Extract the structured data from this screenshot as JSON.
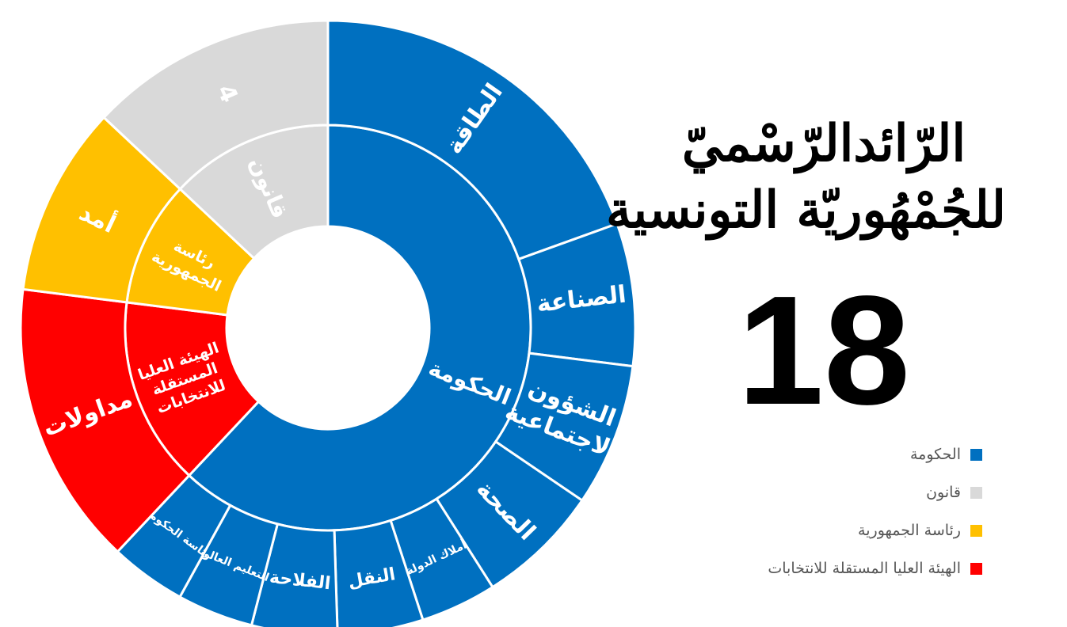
{
  "header": {
    "title_line1": "الرّائدالرّسْميّ",
    "title_line2": "للجُمْهُوريّة التونسية",
    "issue_number": "18"
  },
  "colors": {
    "government": "#0070c0",
    "law": "#d9d9d9",
    "presidency": "#ffc000",
    "election_authority": "#ff0000",
    "separator": "#ffffff"
  },
  "legend": [
    {
      "label": "الحكومة",
      "color": "#0070c0"
    },
    {
      "label": "قانون",
      "color": "#d9d9d9"
    },
    {
      "label": "رئاسة الجمهورية",
      "color": "#ffc000"
    },
    {
      "label": "الهيئة العليا المستقلة للانتخابات",
      "color": "#ff0000"
    }
  ],
  "chart_data": {
    "type": "sunburst",
    "inner_ring": [
      {
        "label": "الحكومة",
        "value": 62,
        "color": "#0070c0"
      },
      {
        "label": "الهيئة العليا المستقلة للانتخابات",
        "value": 15,
        "color": "#ff0000"
      },
      {
        "label": "رئاسة الجمهورية",
        "value": 10,
        "color": "#ffc000"
      },
      {
        "label": "قانون",
        "value": 13,
        "color": "#d9d9d9"
      }
    ],
    "outer_ring": [
      {
        "label": "الطاقة",
        "value": 19.5,
        "color": "#0070c0"
      },
      {
        "label": "الصناعة",
        "value": 7.5,
        "color": "#0070c0"
      },
      {
        "label": "الشؤون الاجتماعية",
        "value": 7.5,
        "color": "#0070c0"
      },
      {
        "label": "الصحة",
        "value": 6.5,
        "color": "#0070c0"
      },
      {
        "label": "أملاك الدولة",
        "value": 4,
        "color": "#0070c0"
      },
      {
        "label": "النقل",
        "value": 4.5,
        "color": "#0070c0"
      },
      {
        "label": "الفلاحة",
        "value": 4.5,
        "color": "#0070c0"
      },
      {
        "label": "التعليم العالي",
        "value": 4,
        "color": "#0070c0"
      },
      {
        "label": "رئاسة الحكومة",
        "value": 4,
        "color": "#0070c0"
      },
      {
        "label": "مداولات",
        "value": 15,
        "color": "#ff0000"
      },
      {
        "label": "أمد",
        "value": 10,
        "color": "#ffc000"
      },
      {
        "label": "4",
        "value": 13,
        "color": "#d9d9d9"
      }
    ],
    "inner_labels": [
      {
        "lines": [
          "الحكومة"
        ]
      },
      {
        "lines": [
          "الهيئة العليا",
          "المستقلة",
          "للانتخابات"
        ]
      },
      {
        "lines": [
          "رئاسة",
          "الجمهورية"
        ]
      },
      {
        "lines": [
          "قانون"
        ]
      }
    ],
    "outer_labels": [
      {
        "lines": [
          "الطاقة"
        ]
      },
      {
        "lines": [
          "الصناعة"
        ]
      },
      {
        "lines": [
          "الشؤون",
          "الاجتماعية"
        ]
      },
      {
        "lines": [
          "الصحة"
        ]
      },
      {
        "lines": [
          "أملاك الدولة"
        ]
      },
      {
        "lines": [
          "النقل"
        ]
      },
      {
        "lines": [
          "الفلاحة"
        ]
      },
      {
        "lines": [
          "التعليم العالي"
        ]
      },
      {
        "lines": [
          "رئاسة الحكومة"
        ]
      },
      {
        "lines": [
          "مداولات"
        ]
      },
      {
        "lines": [
          "أمد"
        ]
      },
      {
        "lines": [
          "4"
        ]
      }
    ]
  }
}
